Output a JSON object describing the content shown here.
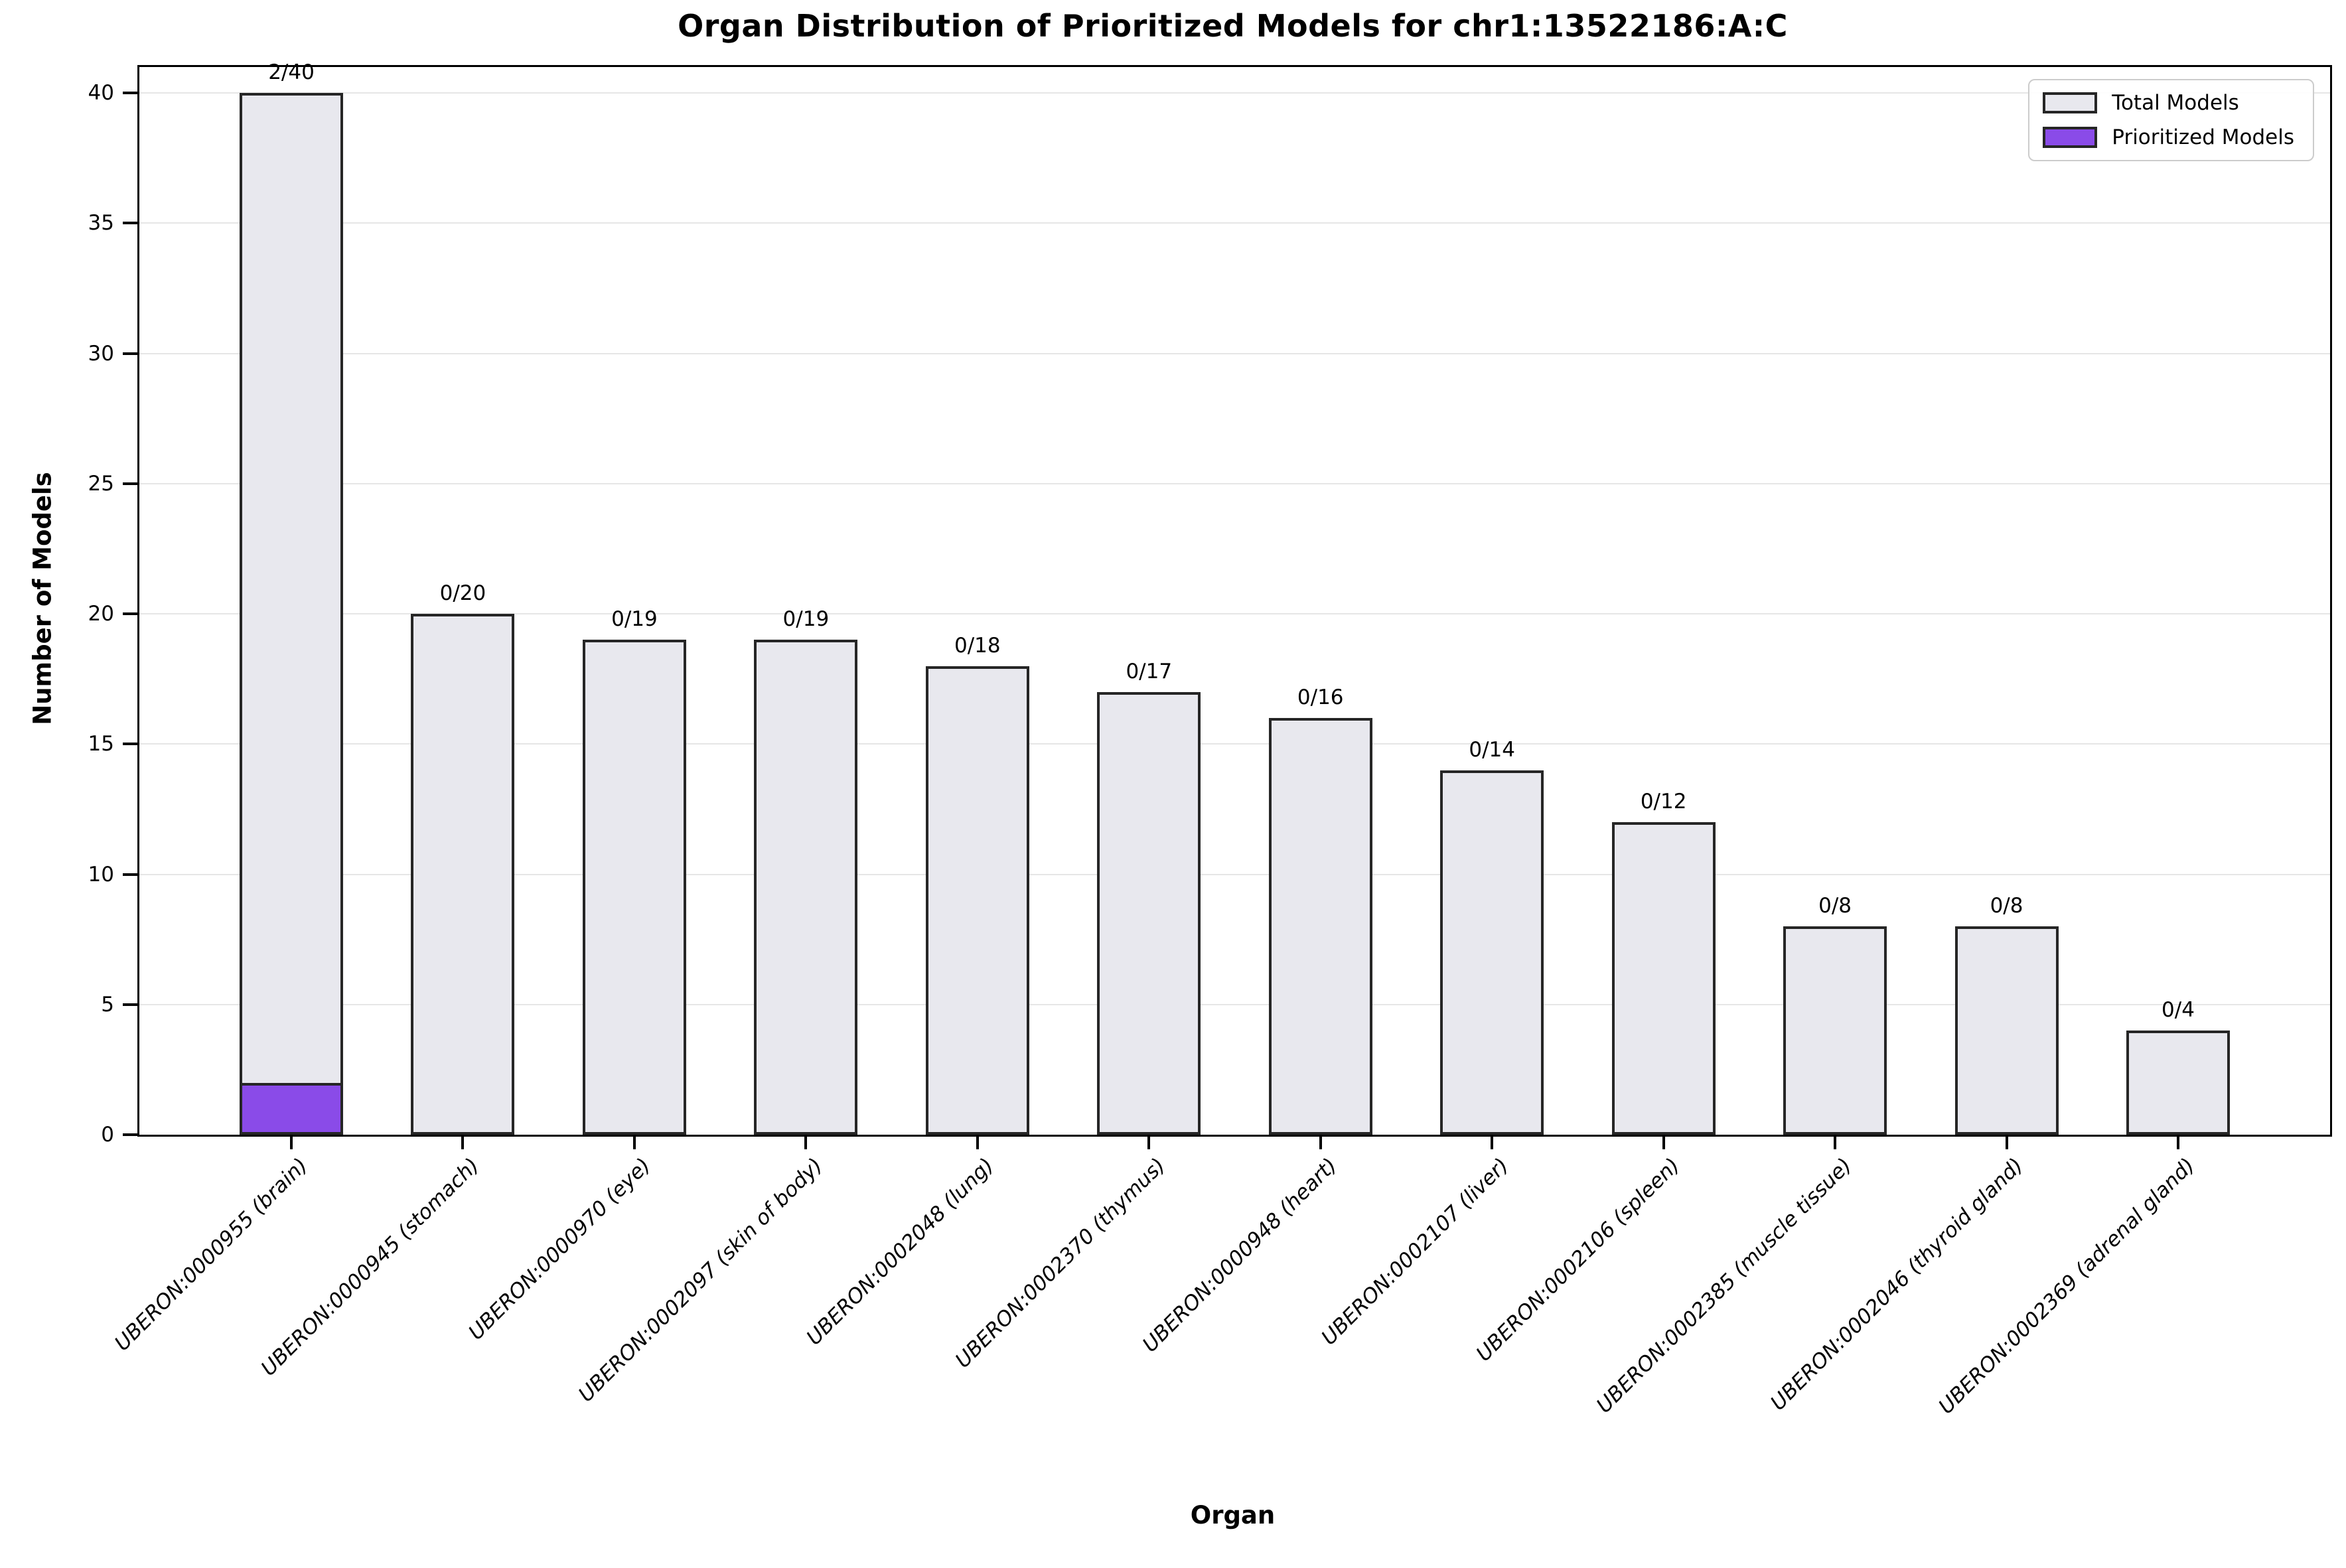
{
  "chart_data": {
    "type": "bar",
    "title": "Organ Distribution of Prioritized Models for chr1:13522186:A:C",
    "xlabel": "Organ",
    "ylabel": "Number of Models",
    "categories": [
      "UBERON:0000955 (brain)",
      "UBERON:0000945 (stomach)",
      "UBERON:0000970 (eye)",
      "UBERON:0002097 (skin of body)",
      "UBERON:0002048 (lung)",
      "UBERON:0002370 (thymus)",
      "UBERON:0000948 (heart)",
      "UBERON:0002107 (liver)",
      "UBERON:0002106 (spleen)",
      "UBERON:0002385 (muscle tissue)",
      "UBERON:0002046 (thyroid gland)",
      "UBERON:0002369 (adrenal gland)"
    ],
    "series": [
      {
        "name": "Total Models",
        "values": [
          40,
          20,
          19,
          19,
          18,
          17,
          16,
          14,
          12,
          8,
          8,
          4
        ],
        "color": "#e8e8ee"
      },
      {
        "name": "Prioritized Models",
        "values": [
          2,
          0,
          0,
          0,
          0,
          0,
          0,
          0,
          0,
          0,
          0,
          0
        ],
        "color": "#8a4be8"
      }
    ],
    "bar_labels": [
      "2/40",
      "0/20",
      "0/19",
      "0/19",
      "0/18",
      "0/17",
      "0/16",
      "0/14",
      "0/12",
      "0/8",
      "0/8",
      "0/4"
    ],
    "yticks": [
      0,
      5,
      10,
      15,
      20,
      25,
      30,
      35,
      40
    ],
    "ylim": [
      0,
      41
    ],
    "grid": true,
    "legend_position": "upper right",
    "colors": {
      "bar_edge": "#262626",
      "grid": "#e6e6e6",
      "spine": "#000000"
    }
  }
}
